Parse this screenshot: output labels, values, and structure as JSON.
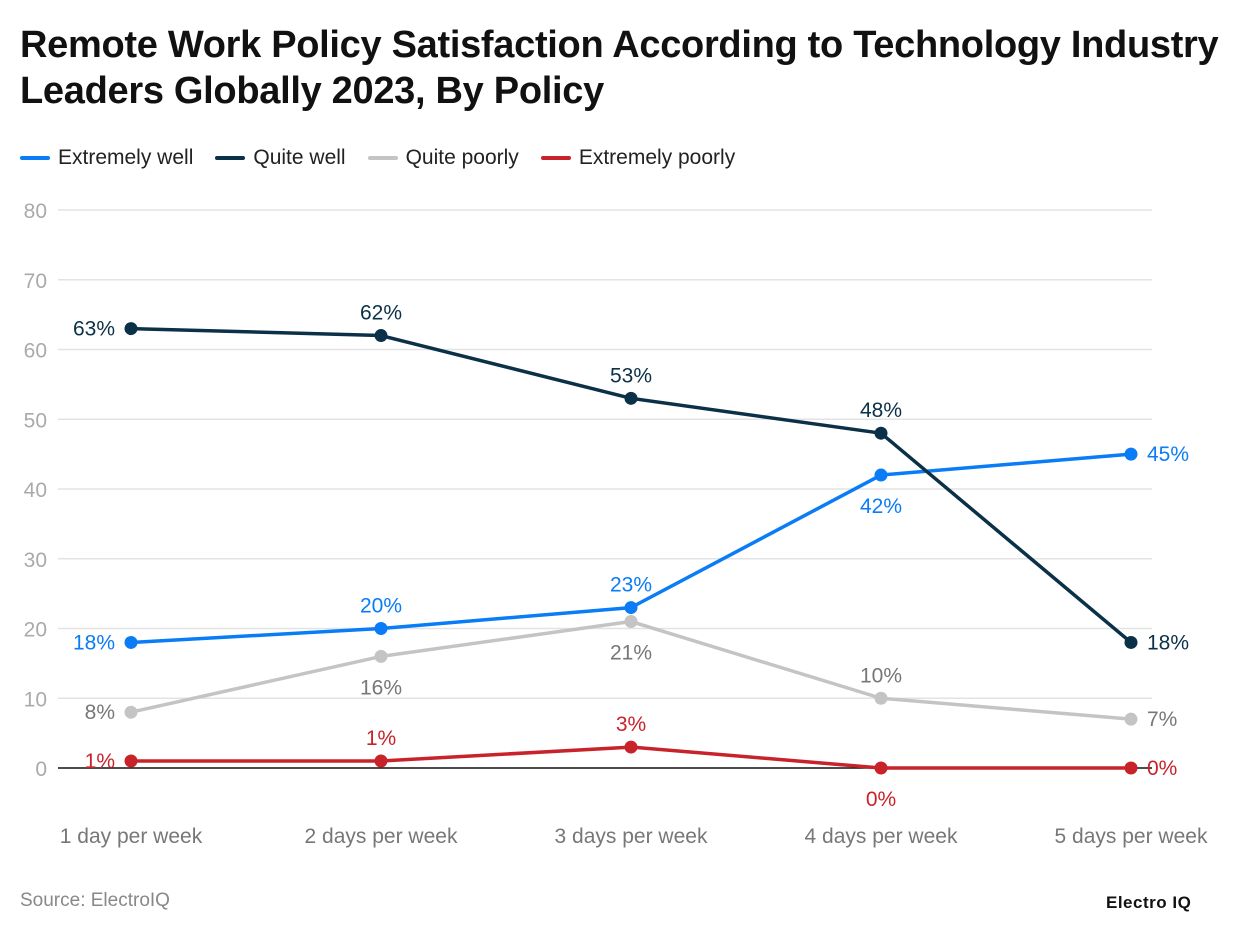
{
  "title": "Remote Work Policy Satisfaction According to Technology Industry Leaders Globally 2023, By Policy",
  "source": "Source: ElectroIQ",
  "logo": "Electro IQ",
  "chart_data": {
    "type": "line",
    "title": "Remote Work Policy Satisfaction According to Technology Industry Leaders Globally 2023, By Policy",
    "categories": [
      "1 day per week",
      "2 days per week",
      "3 days per week",
      "4 days per week",
      "5 days per week"
    ],
    "ylim": [
      0,
      80
    ],
    "yticks": [
      0,
      10,
      20,
      30,
      40,
      50,
      60,
      70,
      80
    ],
    "grid": true,
    "legend_position": "top-left",
    "value_suffix": "%",
    "series": [
      {
        "name": "Extremely well",
        "color": "#0a7cf5",
        "label_color": "#0a7cf5",
        "values": [
          18,
          20,
          23,
          42,
          45
        ]
      },
      {
        "name": "Quite well",
        "color": "#0b3148",
        "label_color": "#0b3148",
        "values": [
          63,
          62,
          53,
          48,
          18
        ]
      },
      {
        "name": "Quite poorly",
        "color": "#c4c4c4",
        "label_color": "#777777",
        "values": [
          8,
          16,
          21,
          10,
          7
        ]
      },
      {
        "name": "Extremely poorly",
        "color": "#c8232a",
        "label_color": "#c8232a",
        "values": [
          1,
          1,
          3,
          0,
          0
        ]
      }
    ]
  }
}
